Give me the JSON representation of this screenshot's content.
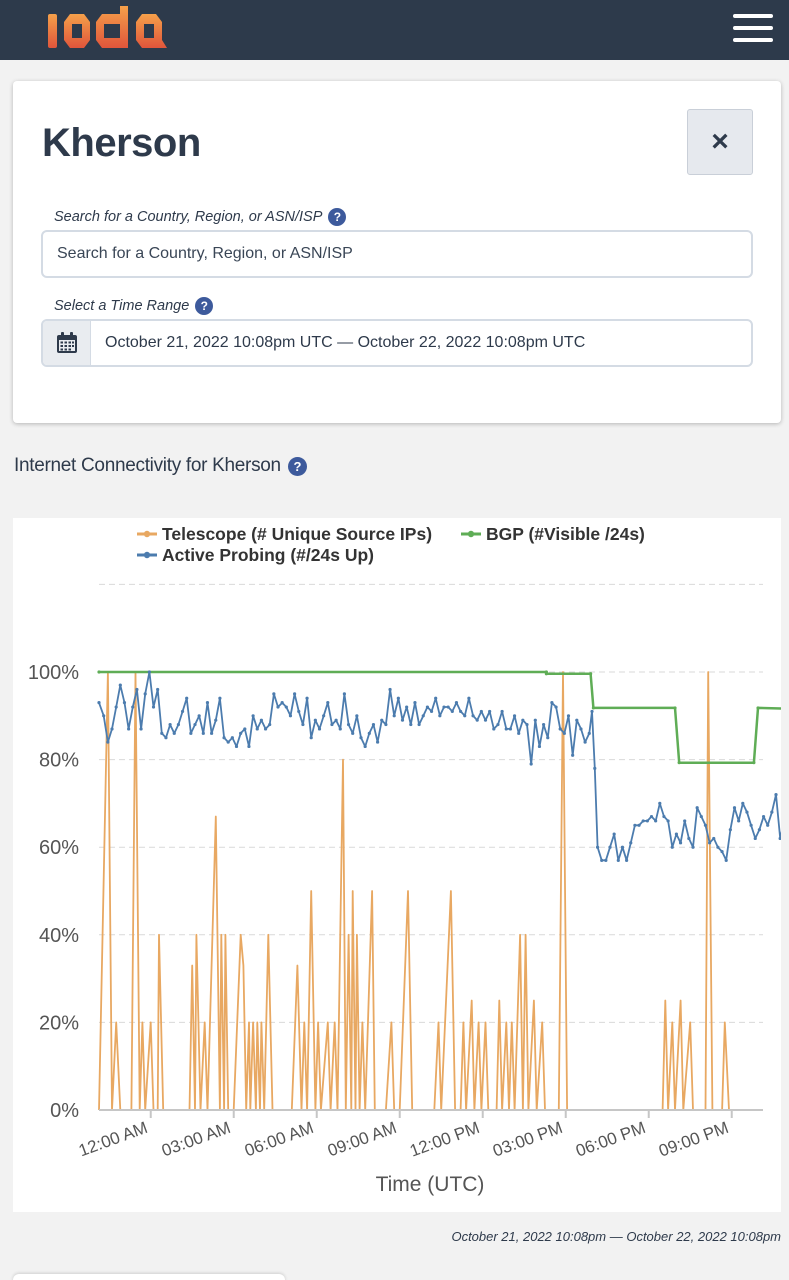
{
  "header": {
    "logo_text": "ioda",
    "menu_icon": "hamburger-icon"
  },
  "search_card": {
    "title": "Kherson",
    "close_label": "×",
    "search_label": "Search for a Country, Region, or ASN/ISP",
    "search_placeholder": "Search for a Country, Region, or ASN/ISP",
    "search_value": "",
    "time_label": "Select a Time Range",
    "time_range": "October 21, 2022 10:08pm UTC — October 22, 2022 10:08pm UTC",
    "help_icon": "question-circle-icon",
    "calendar_icon": "calendar-icon"
  },
  "connectivity": {
    "title": "Internet Connectivity for Kherson",
    "range_caption": "October 21, 2022 10:08pm — October 22, 2022 10:08pm"
  },
  "chart_data": {
    "type": "line",
    "xlabel": "Time (UTC)",
    "ylabel": "",
    "x_start_hour": -1.87,
    "x_end_hour": 22.13,
    "ylim": [
      0,
      100
    ],
    "y_ticks": [
      0,
      20,
      40,
      60,
      80,
      100
    ],
    "y_tick_labels": [
      "0%",
      "20%",
      "40%",
      "60%",
      "80%",
      "100%"
    ],
    "x_ticks": [
      0,
      3,
      6,
      9,
      12,
      15,
      18,
      21
    ],
    "x_tick_labels": [
      "12:00 AM",
      "03:00 AM",
      "06:00 AM",
      "09:00 AM",
      "12:00 PM",
      "03:00 PM",
      "06:00 PM",
      "09:00 PM"
    ],
    "grid": true,
    "legend_position": "top",
    "series": [
      {
        "name": "Telescope (# Unique Source IPs)",
        "color": "#e8a862",
        "points": [
          [
            -1.87,
            0
          ],
          [
            -1.55,
            100
          ],
          [
            -1.4,
            0
          ],
          [
            -1.25,
            20
          ],
          [
            -1.1,
            0
          ],
          [
            -0.7,
            0
          ],
          [
            -0.55,
            100
          ],
          [
            -0.4,
            0
          ],
          [
            -0.3,
            20
          ],
          [
            -0.2,
            0
          ],
          [
            0,
            20
          ],
          [
            0.1,
            0
          ],
          [
            0.25,
            0
          ],
          [
            0.3,
            40
          ],
          [
            0.45,
            0
          ],
          [
            0.9,
            0
          ],
          [
            1.4,
            0
          ],
          [
            1.5,
            33
          ],
          [
            1.6,
            0
          ],
          [
            1.65,
            40
          ],
          [
            1.8,
            0
          ],
          [
            1.95,
            20
          ],
          [
            2.05,
            0
          ],
          [
            2.35,
            67
          ],
          [
            2.5,
            0
          ],
          [
            2.55,
            40
          ],
          [
            2.65,
            0
          ],
          [
            2.7,
            40
          ],
          [
            2.8,
            0
          ],
          [
            3,
            0
          ],
          [
            3.25,
            40
          ],
          [
            3.35,
            33
          ],
          [
            3.45,
            0
          ],
          [
            3.55,
            20
          ],
          [
            3.6,
            0
          ],
          [
            3.7,
            20
          ],
          [
            3.8,
            0
          ],
          [
            3.85,
            20
          ],
          [
            3.95,
            0
          ],
          [
            4,
            20
          ],
          [
            4.1,
            0
          ],
          [
            4.25,
            40
          ],
          [
            4.4,
            0
          ],
          [
            5.1,
            0
          ],
          [
            5.3,
            33
          ],
          [
            5.45,
            0
          ],
          [
            5.55,
            20
          ],
          [
            5.65,
            0
          ],
          [
            5.8,
            50
          ],
          [
            5.95,
            0
          ],
          [
            6.05,
            20
          ],
          [
            6.15,
            0
          ],
          [
            6.4,
            20
          ],
          [
            6.5,
            0
          ],
          [
            6.65,
            20
          ],
          [
            6.75,
            0
          ],
          [
            6.95,
            80
          ],
          [
            7.05,
            0
          ],
          [
            7.15,
            40
          ],
          [
            7.25,
            0
          ],
          [
            7.3,
            50
          ],
          [
            7.4,
            0
          ],
          [
            7.45,
            40
          ],
          [
            7.55,
            0
          ],
          [
            7.65,
            20
          ],
          [
            7.75,
            0
          ],
          [
            8,
            50
          ],
          [
            8.1,
            0
          ],
          [
            8.5,
            0
          ],
          [
            8.7,
            20
          ],
          [
            8.8,
            0
          ],
          [
            9,
            0
          ],
          [
            9.3,
            50
          ],
          [
            9.45,
            0
          ],
          [
            10.25,
            0
          ],
          [
            10.4,
            20
          ],
          [
            10.5,
            0
          ],
          [
            10.85,
            50
          ],
          [
            11,
            0
          ],
          [
            11.2,
            0
          ],
          [
            11.3,
            20
          ],
          [
            11.4,
            0
          ],
          [
            11.6,
            25
          ],
          [
            11.7,
            0
          ],
          [
            11.85,
            20
          ],
          [
            11.95,
            0
          ],
          [
            12.1,
            20
          ],
          [
            12.2,
            0
          ],
          [
            12.5,
            0
          ],
          [
            12.6,
            25
          ],
          [
            12.7,
            0
          ],
          [
            12.85,
            20
          ],
          [
            12.95,
            0
          ],
          [
            13.05,
            20
          ],
          [
            13.15,
            0
          ],
          [
            13.35,
            40
          ],
          [
            13.45,
            0
          ],
          [
            13.55,
            40
          ],
          [
            13.65,
            0
          ],
          [
            13.85,
            25
          ],
          [
            13.95,
            0
          ],
          [
            14.15,
            20
          ],
          [
            14.25,
            0
          ],
          [
            14.5,
            0
          ],
          [
            14.75,
            0
          ],
          [
            14.9,
            100
          ],
          [
            15.05,
            0
          ],
          [
            18.5,
            0
          ],
          [
            18.6,
            25
          ],
          [
            18.7,
            0
          ],
          [
            18.85,
            20
          ],
          [
            18.95,
            0
          ],
          [
            19.15,
            25
          ],
          [
            19.25,
            0
          ],
          [
            19.5,
            20
          ],
          [
            19.6,
            0
          ],
          [
            20.05,
            0
          ],
          [
            20.15,
            100
          ],
          [
            20.3,
            0
          ],
          [
            20.65,
            0
          ],
          [
            20.75,
            20
          ],
          [
            20.9,
            0
          ]
        ]
      },
      {
        "name": "BGP (#Visible /24s)",
        "color": "#5fad56",
        "points": [
          [
            -1.87,
            100
          ],
          [
            14.3,
            100
          ],
          [
            14.3,
            99.6
          ],
          [
            15.9,
            99.6
          ],
          [
            16,
            91.8
          ],
          [
            18.95,
            91.8
          ],
          [
            19.1,
            79.3
          ],
          [
            21.8,
            79.3
          ],
          [
            21.95,
            91.8
          ],
          [
            23.1,
            91.6
          ]
        ]
      },
      {
        "name": "Active Probing (#/24s Up)",
        "color": "#4c7cae",
        "points": [
          [
            -1.87,
            93
          ],
          [
            -1.7,
            90
          ],
          [
            -1.55,
            84
          ],
          [
            -1.4,
            87
          ],
          [
            -1.25,
            92
          ],
          [
            -1.1,
            97
          ],
          [
            -0.95,
            93
          ],
          [
            -0.8,
            87
          ],
          [
            -0.65,
            92
          ],
          [
            -0.5,
            96
          ],
          [
            -0.35,
            87
          ],
          [
            -0.2,
            95
          ],
          [
            -0.05,
            100
          ],
          [
            0.1,
            92
          ],
          [
            0.25,
            96
          ],
          [
            0.4,
            86
          ],
          [
            0.55,
            85
          ],
          [
            0.7,
            88
          ],
          [
            0.85,
            86
          ],
          [
            1.0,
            88
          ],
          [
            1.15,
            91
          ],
          [
            1.3,
            94
          ],
          [
            1.45,
            86
          ],
          [
            1.6,
            88
          ],
          [
            1.75,
            90
          ],
          [
            1.9,
            86
          ],
          [
            2.05,
            93
          ],
          [
            2.2,
            86
          ],
          [
            2.35,
            89
          ],
          [
            2.5,
            94
          ],
          [
            2.65,
            85
          ],
          [
            2.8,
            84
          ],
          [
            2.95,
            85
          ],
          [
            3.1,
            83
          ],
          [
            3.25,
            86
          ],
          [
            3.4,
            87
          ],
          [
            3.55,
            83
          ],
          [
            3.7,
            90
          ],
          [
            3.85,
            87
          ],
          [
            4.0,
            89
          ],
          [
            4.15,
            87
          ],
          [
            4.3,
            88
          ],
          [
            4.45,
            95
          ],
          [
            4.6,
            92
          ],
          [
            4.75,
            93
          ],
          [
            4.9,
            92
          ],
          [
            5.05,
            90
          ],
          [
            5.2,
            95
          ],
          [
            5.35,
            91
          ],
          [
            5.5,
            88
          ],
          [
            5.65,
            94
          ],
          [
            5.8,
            85
          ],
          [
            5.95,
            89
          ],
          [
            6.1,
            87
          ],
          [
            6.25,
            90
          ],
          [
            6.4,
            93
          ],
          [
            6.55,
            88
          ],
          [
            6.7,
            89
          ],
          [
            6.85,
            87
          ],
          [
            7.0,
            95
          ],
          [
            7.15,
            88
          ],
          [
            7.3,
            86
          ],
          [
            7.45,
            90
          ],
          [
            7.6,
            85
          ],
          [
            7.75,
            83
          ],
          [
            7.9,
            86
          ],
          [
            8.05,
            88
          ],
          [
            8.2,
            84
          ],
          [
            8.35,
            89
          ],
          [
            8.5,
            88
          ],
          [
            8.65,
            96
          ],
          [
            8.8,
            90
          ],
          [
            8.95,
            94
          ],
          [
            9.1,
            89
          ],
          [
            9.25,
            92
          ],
          [
            9.4,
            88
          ],
          [
            9.55,
            93
          ],
          [
            9.7,
            88
          ],
          [
            9.85,
            90
          ],
          [
            10.0,
            92
          ],
          [
            10.15,
            91
          ],
          [
            10.3,
            94
          ],
          [
            10.45,
            90
          ],
          [
            10.6,
            92
          ],
          [
            10.75,
            92
          ],
          [
            10.9,
            91
          ],
          [
            11.05,
            93
          ],
          [
            11.2,
            91
          ],
          [
            11.35,
            90
          ],
          [
            11.5,
            94
          ],
          [
            11.65,
            90
          ],
          [
            11.8,
            89
          ],
          [
            11.95,
            91
          ],
          [
            12.1,
            89
          ],
          [
            12.25,
            91
          ],
          [
            12.4,
            87
          ],
          [
            12.55,
            88
          ],
          [
            12.7,
            91
          ],
          [
            12.85,
            87
          ],
          [
            13.0,
            87
          ],
          [
            13.15,
            90
          ],
          [
            13.3,
            86
          ],
          [
            13.45,
            89
          ],
          [
            13.6,
            88
          ],
          [
            13.75,
            79
          ],
          [
            13.9,
            89
          ],
          [
            14.05,
            83
          ],
          [
            14.2,
            88
          ],
          [
            14.35,
            85
          ],
          [
            14.5,
            93
          ],
          [
            14.65,
            92
          ],
          [
            14.8,
            87
          ],
          [
            14.95,
            86
          ],
          [
            15.1,
            90
          ],
          [
            15.25,
            81
          ],
          [
            15.4,
            89
          ],
          [
            15.55,
            87
          ],
          [
            15.7,
            84
          ],
          [
            15.85,
            86
          ],
          [
            15.95,
            91
          ],
          [
            16.05,
            78
          ],
          [
            16.15,
            60
          ],
          [
            16.3,
            57
          ],
          [
            16.45,
            57
          ],
          [
            16.6,
            60
          ],
          [
            16.75,
            63
          ],
          [
            16.9,
            57
          ],
          [
            17.05,
            60
          ],
          [
            17.2,
            57
          ],
          [
            17.35,
            61
          ],
          [
            17.5,
            65
          ],
          [
            17.65,
            65
          ],
          [
            17.8,
            66
          ],
          [
            17.95,
            66
          ],
          [
            18.1,
            67
          ],
          [
            18.25,
            66
          ],
          [
            18.4,
            70
          ],
          [
            18.55,
            67
          ],
          [
            18.7,
            66
          ],
          [
            18.85,
            60
          ],
          [
            19.0,
            63
          ],
          [
            19.15,
            61
          ],
          [
            19.3,
            66
          ],
          [
            19.45,
            62
          ],
          [
            19.6,
            60
          ],
          [
            19.75,
            69
          ],
          [
            19.9,
            67
          ],
          [
            20.05,
            65
          ],
          [
            20.2,
            61
          ],
          [
            20.35,
            62
          ],
          [
            20.5,
            60
          ],
          [
            20.65,
            59
          ],
          [
            20.8,
            57
          ],
          [
            20.95,
            64
          ],
          [
            21.1,
            69
          ],
          [
            21.25,
            66
          ],
          [
            21.4,
            70
          ],
          [
            21.55,
            68
          ],
          [
            21.7,
            65
          ],
          [
            21.85,
            62
          ],
          [
            22.0,
            64
          ],
          [
            22.15,
            67
          ],
          [
            22.3,
            65
          ],
          [
            22.45,
            68
          ],
          [
            22.6,
            72
          ],
          [
            22.75,
            62
          ],
          [
            22.9,
            66
          ],
          [
            23.05,
            64
          ],
          [
            23.2,
            64
          ],
          [
            23.35,
            61
          ]
        ]
      }
    ]
  }
}
